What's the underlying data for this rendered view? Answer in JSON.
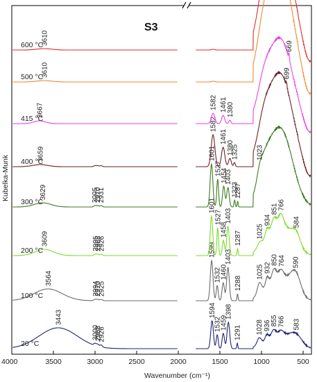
{
  "chart_data": {
    "type": "line",
    "title": "S3",
    "xlabel": "Wavenumber (cm⁻¹)",
    "ylabel": "Kubelka-Munk",
    "xlim": [
      4000,
      400
    ],
    "xaxis_reversed": true,
    "axis_break": [
      2000,
      1800
    ],
    "xticks": [
      4000,
      3500,
      3000,
      2500,
      2000,
      1500,
      1000,
      500
    ],
    "xtick_labels": [
      "4000",
      "3500",
      "3000",
      "2500",
      "2000",
      "1500",
      "1000",
      "500"
    ],
    "series": [
      {
        "temp": "20 °C",
        "color": "#1f237a",
        "peaks": [
          {
            "x": 3443,
            "label": "3443"
          },
          {
            "x": 3000,
            "label": "3000"
          },
          {
            "x": 2968,
            "label": "2968"
          },
          {
            "x": 2926,
            "label": "2926"
          },
          {
            "x": 1594,
            "label": "1594"
          },
          {
            "x": 1532,
            "label": "1532"
          },
          {
            "x": 1459,
            "label": "1459"
          },
          {
            "x": 1398,
            "label": "1398"
          },
          {
            "x": 1291,
            "label": "1291"
          },
          {
            "x": 1028,
            "label": "1028"
          },
          {
            "x": 936,
            "label": "936"
          },
          {
            "x": 855,
            "label": "855"
          },
          {
            "x": 766,
            "label": "766"
          },
          {
            "x": 583,
            "label": "583"
          }
        ]
      },
      {
        "temp": "100 °C",
        "color": "#6b6b6b",
        "peaks": [
          {
            "x": 3564,
            "label": "3564"
          },
          {
            "x": 2994,
            "label": "2994"
          },
          {
            "x": 2970,
            "label": "2970"
          },
          {
            "x": 2925,
            "label": "2925"
          },
          {
            "x": 1599,
            "label": "1599"
          },
          {
            "x": 1532,
            "label": "1532"
          },
          {
            "x": 1460,
            "label": "1460"
          },
          {
            "x": 1403,
            "label": "1403"
          },
          {
            "x": 1288,
            "label": "1288"
          },
          {
            "x": 1025,
            "label": "1025"
          },
          {
            "x": 932,
            "label": "932"
          },
          {
            "x": 850,
            "label": "850"
          },
          {
            "x": 764,
            "label": "764"
          },
          {
            "x": 590,
            "label": "590"
          }
        ]
      },
      {
        "temp": "200 °C",
        "color": "#7cdc2a",
        "peaks": [
          {
            "x": 3609,
            "label": "3609"
          },
          {
            "x": 2995,
            "label": "2995"
          },
          {
            "x": 2968,
            "label": "2968"
          },
          {
            "x": 2926,
            "label": "2926"
          },
          {
            "x": 1601,
            "label": "1601"
          },
          {
            "x": 1527,
            "label": "1527"
          },
          {
            "x": 1458,
            "label": "1458"
          },
          {
            "x": 1403,
            "label": "1403"
          },
          {
            "x": 1287,
            "label": "1287"
          },
          {
            "x": 1025,
            "label": "1025"
          },
          {
            "x": 934,
            "label": "934"
          },
          {
            "x": 851,
            "label": "851"
          },
          {
            "x": 766,
            "label": "766"
          },
          {
            "x": 584,
            "label": "584"
          }
        ]
      },
      {
        "temp": "300 °C",
        "color": "#3c7a1e",
        "peaks": [
          {
            "x": 3629,
            "label": "3629"
          },
          {
            "x": 3005,
            "label": "3005"
          },
          {
            "x": 2970,
            "label": "2970"
          },
          {
            "x": 2931,
            "label": "2931"
          },
          {
            "x": 1601,
            "label": "1601"
          },
          {
            "x": 1527,
            "label": "1527"
          },
          {
            "x": 1454,
            "label": "1454"
          },
          {
            "x": 1403,
            "label": "1403"
          },
          {
            "x": 1323,
            "label": "1323"
          },
          {
            "x": 1287,
            "label": "1287"
          },
          {
            "x": 1023,
            "label": "1023"
          }
        ]
      },
      {
        "temp": "400 °C",
        "color": "#6b1f26",
        "peaks": [
          {
            "x": 3659,
            "label": "3659"
          },
          {
            "x": 1582,
            "label": "1582"
          },
          {
            "x": 1461,
            "label": "1461"
          },
          {
            "x": 1380,
            "label": "1380"
          },
          {
            "x": 1325,
            "label": "1325"
          },
          {
            "x": 699,
            "label": "699"
          }
        ]
      },
      {
        "temp": "415 °C",
        "color": "#ee3ee6",
        "peaks": [
          {
            "x": 3667,
            "label": "3667"
          },
          {
            "x": 1582,
            "label": "1582"
          },
          {
            "x": 1461,
            "label": "1461"
          },
          {
            "x": 1380,
            "label": "1380"
          },
          {
            "x": 669,
            "label": "669"
          }
        ]
      },
      {
        "temp": "500 °C",
        "color": "#f0892a",
        "peaks": [
          {
            "x": 3610,
            "label": "3610"
          },
          {
            "x": 669,
            "label": "669"
          }
        ]
      },
      {
        "temp": "600 °C",
        "color": "#e32a2a",
        "peaks": [
          {
            "x": 3610,
            "label": "3610"
          },
          {
            "x": 669,
            "label": "669"
          }
        ]
      }
    ]
  }
}
